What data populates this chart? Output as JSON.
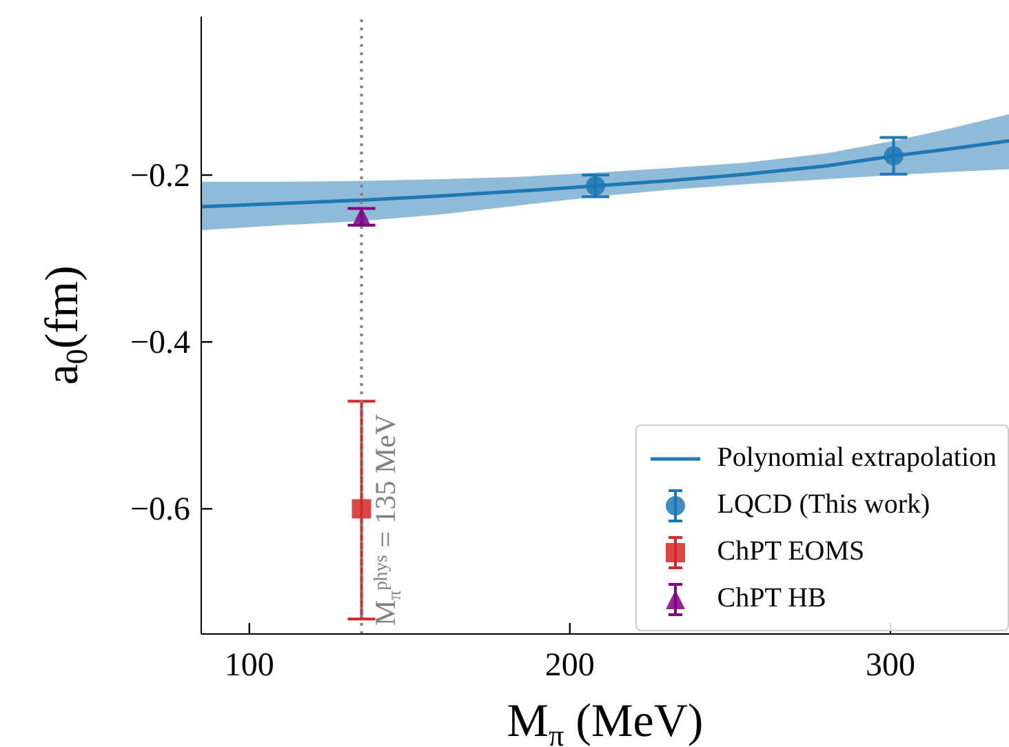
{
  "chart_data": {
    "type": "scatter",
    "xlabel": "M$_{π}$ (MeV)",
    "ylabel": "a$_{0}$(fm)",
    "xlim": [
      85,
      337
    ],
    "ylim": [
      -0.75,
      -0.01
    ],
    "xticks": [
      100,
      200,
      300
    ],
    "yticks": [
      {
        "value": -0.6,
        "label": "−0.6"
      },
      {
        "value": -0.4,
        "label": "−0.4"
      },
      {
        "value": -0.2,
        "label": "−0.2"
      }
    ],
    "legend": "bottom right",
    "ref_lines": [
      {
        "axis": "x",
        "value": 135,
        "label": "M$_{π}$$^{phys}$ = 135 MeV",
        "color": "#808080",
        "line_style": "dotted"
      }
    ],
    "series": [
      {
        "name": "Polynomial extrapolation",
        "type": "line",
        "color": "#1f77b4",
        "line_style": "solid",
        "x": [
          85,
          110,
          135,
          160,
          185,
          208,
          230,
          255,
          280,
          301,
          320,
          337
        ],
        "values": [
          -0.238,
          -0.234,
          -0.23,
          -0.225,
          -0.219,
          -0.213,
          -0.207,
          -0.199,
          -0.189,
          -0.177,
          -0.168,
          -0.159
        ],
        "lower": [
          -0.266,
          -0.26,
          -0.255,
          -0.247,
          -0.236,
          -0.226,
          -0.218,
          -0.211,
          -0.205,
          -0.2,
          -0.196,
          -0.193
        ],
        "upper": [
          -0.208,
          -0.208,
          -0.207,
          -0.205,
          -0.202,
          -0.197,
          -0.192,
          -0.185,
          -0.174,
          -0.159,
          -0.143,
          -0.127
        ]
      },
      {
        "name": "LQCD (This work)",
        "color": "#1f77b4",
        "marker": "circle",
        "x": [
          208,
          301
        ],
        "values": [
          -0.213,
          -0.177
        ],
        "errors": [
          0.013,
          0.022
        ]
      },
      {
        "name": "ChPT EOMS",
        "color": "#d62728",
        "marker": "square",
        "x": [
          135
        ],
        "values": [
          -0.6
        ],
        "errors": [
          [
            -0.732,
            -0.471
          ]
        ]
      },
      {
        "name": "ChPT HB",
        "color": "#800080",
        "marker": "triangle",
        "x": [
          135
        ],
        "values": [
          -0.25
        ],
        "errors": [
          0.01
        ]
      }
    ]
  }
}
